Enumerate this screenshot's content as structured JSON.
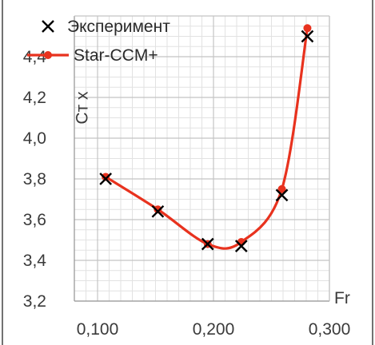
{
  "chart_data": {
    "type": "scatter+line",
    "ylabel": "Ст х",
    "xlabel": "Fr",
    "xlim": [
      0.08,
      0.3
    ],
    "ylim": [
      3.2,
      4.6
    ],
    "x_ticks": [
      0.1,
      0.2,
      0.3
    ],
    "x_tick_labels": [
      "0,100",
      "0,200",
      "0,300"
    ],
    "y_ticks": [
      3.2,
      3.4,
      3.6,
      3.8,
      4.0,
      4.2,
      4.4
    ],
    "y_tick_labels": [
      "3,2",
      "3,4",
      "3,6",
      "3,8",
      "4,0",
      "4,2",
      "4,4"
    ],
    "grid": true,
    "legend_position": "top-left",
    "series": [
      {
        "name": "Эксперимент",
        "kind": "markers",
        "marker": "x",
        "color": "#000000",
        "x": [
          0.107,
          0.152,
          0.195,
          0.224,
          0.259,
          0.281
        ],
        "y": [
          3.8,
          3.64,
          3.48,
          3.47,
          3.72,
          4.5
        ]
      },
      {
        "name": "Star-CCM+",
        "kind": "line",
        "marker": "circle",
        "color": "#e8321e",
        "x": [
          0.107,
          0.152,
          0.195,
          0.224,
          0.259,
          0.281
        ],
        "y": [
          3.81,
          3.65,
          3.48,
          3.49,
          3.75,
          4.54
        ]
      }
    ]
  }
}
